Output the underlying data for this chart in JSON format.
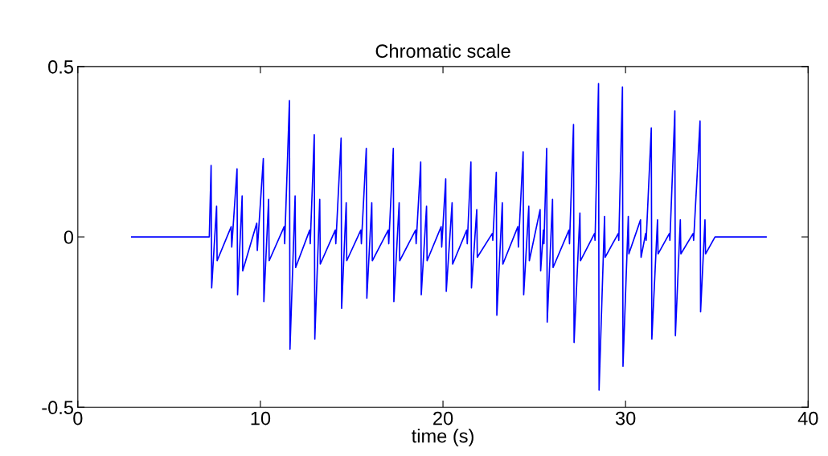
{
  "chart_data": {
    "type": "line",
    "title": "Chromatic scale",
    "xlabel": "time (s)",
    "xlim": [
      0,
      40
    ],
    "xticks": [
      0,
      10,
      20,
      30,
      40
    ],
    "ylim": [
      -0.5,
      0.5
    ],
    "yticks": [
      -0.5,
      0,
      0.5
    ],
    "grid": false,
    "legend": false,
    "series": [
      {
        "color": "#0000ff",
        "x": [
          2.95,
          7.2,
          7.3,
          7.33,
          7.6,
          7.63,
          8.4,
          8.43,
          8.72,
          8.75,
          9.0,
          9.03,
          9.8,
          9.83,
          10.16,
          10.19,
          10.45,
          10.48,
          11.3,
          11.33,
          11.59,
          11.62,
          11.9,
          11.93,
          12.7,
          12.73,
          12.95,
          12.98,
          13.25,
          13.28,
          14.1,
          14.13,
          14.42,
          14.45,
          14.7,
          14.73,
          15.5,
          15.53,
          15.8,
          15.83,
          16.1,
          16.13,
          17.0,
          17.03,
          17.28,
          17.31,
          17.6,
          17.63,
          18.5,
          18.53,
          18.78,
          18.81,
          19.1,
          19.13,
          19.9,
          19.93,
          20.15,
          20.18,
          20.5,
          20.53,
          21.3,
          21.33,
          21.53,
          21.56,
          21.85,
          21.88,
          22.7,
          22.73,
          22.92,
          22.95,
          23.25,
          23.28,
          24.1,
          24.13,
          24.39,
          24.42,
          24.7,
          24.73,
          25.32,
          25.35,
          25.5,
          25.53,
          25.68,
          25.71,
          26.0,
          26.03,
          26.9,
          26.93,
          27.15,
          27.18,
          27.5,
          27.53,
          28.3,
          28.33,
          28.52,
          28.55,
          28.85,
          28.88,
          29.6,
          29.63,
          29.83,
          29.86,
          30.15,
          30.18,
          30.82,
          30.85,
          31.1,
          31.13,
          31.41,
          31.44,
          31.75,
          31.78,
          32.4,
          32.43,
          32.7,
          32.73,
          33.0,
          33.03,
          33.7,
          33.73,
          34.08,
          34.11,
          34.35,
          34.38,
          34.9,
          37.7
        ],
        "values": [
          0,
          0,
          0.21,
          -0.15,
          0.09,
          -0.07,
          0.03,
          -0.03,
          0.2,
          -0.17,
          0.12,
          -0.1,
          0.04,
          -0.04,
          0.23,
          -0.19,
          0.11,
          -0.07,
          0.03,
          -0.02,
          0.4,
          -0.33,
          0.12,
          -0.09,
          0.02,
          -0.02,
          0.3,
          -0.3,
          0.11,
          -0.08,
          0.02,
          -0.02,
          0.29,
          -0.21,
          0.1,
          -0.07,
          0.02,
          -0.02,
          0.26,
          -0.18,
          0.1,
          -0.07,
          0.02,
          -0.02,
          0.26,
          -0.19,
          0.1,
          -0.07,
          0.02,
          -0.02,
          0.22,
          -0.17,
          0.09,
          -0.07,
          0.03,
          -0.03,
          0.17,
          -0.16,
          0.1,
          -0.08,
          0.02,
          -0.02,
          0.22,
          -0.15,
          0.08,
          -0.06,
          0.01,
          -0.01,
          0.19,
          -0.23,
          0.1,
          -0.08,
          0.03,
          -0.03,
          0.25,
          -0.17,
          0.09,
          -0.07,
          0.08,
          -0.1,
          0.02,
          -0.02,
          0.26,
          -0.25,
          0.11,
          -0.09,
          0.02,
          -0.02,
          0.33,
          -0.31,
          0.07,
          -0.07,
          0.01,
          -0.01,
          0.45,
          -0.45,
          0.06,
          -0.06,
          0.01,
          -0.01,
          0.44,
          -0.38,
          0.06,
          -0.05,
          0.05,
          -0.06,
          0.01,
          -0.01,
          0.32,
          -0.3,
          0.05,
          -0.05,
          0.01,
          -0.01,
          0.37,
          -0.29,
          0.05,
          -0.05,
          0.01,
          -0.01,
          0.34,
          -0.22,
          0.05,
          -0.05,
          0,
          0
        ]
      }
    ]
  }
}
